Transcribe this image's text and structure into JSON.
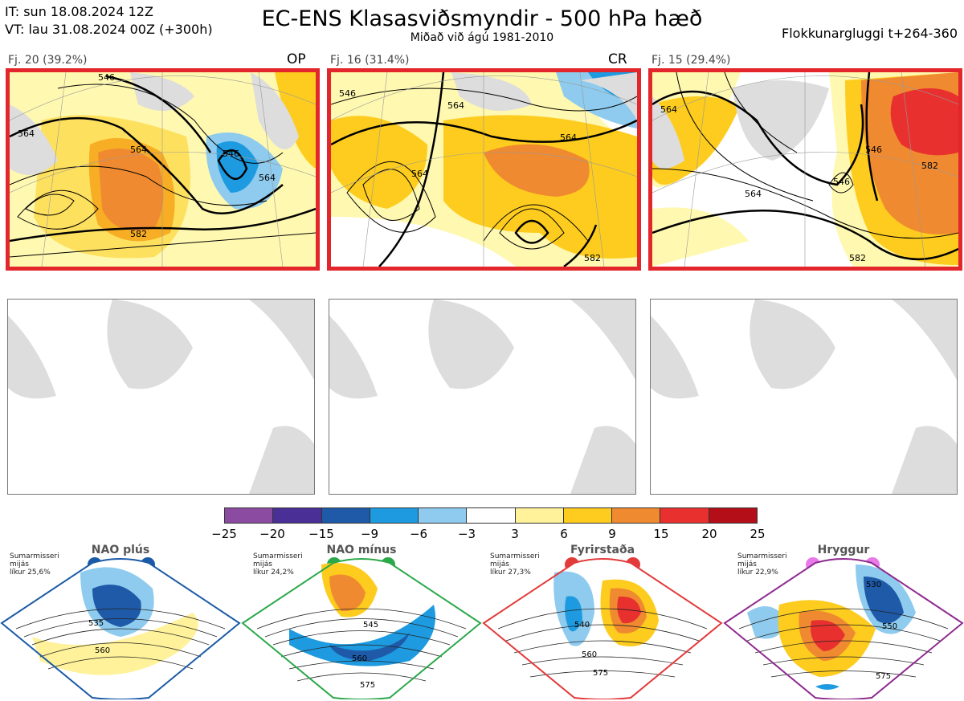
{
  "header": {
    "it_line": "IT: sun 18.08.2024 12Z",
    "vt_line": "VT: lau 31.08.2024 00Z  (+300h)",
    "title": "EC-ENS Klasasviðsmyndir - 500 hPa hæð",
    "subtitle": "Miðað við ágú 1981-2010",
    "window": "Flokkunargluggi t+264-360"
  },
  "clusters": [
    {
      "label": "Fj. 20 (39.2%)",
      "tag": "OP",
      "contours": [
        "546",
        "564",
        "564",
        "546",
        "564",
        "582"
      ]
    },
    {
      "label": "Fj. 16 (31.4%)",
      "tag": "CR",
      "contours": [
        "546",
        "564",
        "564",
        "564",
        "582"
      ]
    },
    {
      "label": "Fj. 15 (29.4%)",
      "tag": "",
      "contours": [
        "564",
        "546",
        "564",
        "546",
        "582",
        "582"
      ]
    }
  ],
  "colorbar": {
    "colors": [
      "#8b4ba0",
      "#4a2f96",
      "#1e5aa8",
      "#1e9be0",
      "#8ecbee",
      "#ffffff",
      "#fff29a",
      "#fdcc1e",
      "#f08a30",
      "#e8312f",
      "#b40f18"
    ],
    "ticks": [
      "−25",
      "−20",
      "−15",
      "−9",
      "−6",
      "−3",
      "3",
      "6",
      "9",
      "15",
      "20",
      "25"
    ]
  },
  "regimes": [
    {
      "name": "NAO plús",
      "line1": "Sumarmisseri",
      "line2": "mijás",
      "line3": "líkur 25,6%",
      "border": "#1a5aa6",
      "dot": "#1a5aa6",
      "c1": "535",
      "c2": "560"
    },
    {
      "name": "NAO mínus",
      "line1": "Sumarmisseri",
      "line2": "mijás",
      "line3": "líkur 24,2%",
      "border": "#2aa84a",
      "dot": "#2aa84a",
      "c1": "545",
      "c2": "560",
      "c3": "575"
    },
    {
      "name": "Fyrirstaða",
      "line1": "Sumarmisseri",
      "line2": "mijás",
      "line3": "líkur 27,3%",
      "border": "#e33a3a",
      "dot": "#e33a3a",
      "c1": "540",
      "c2": "560",
      "c3": "575"
    },
    {
      "name": "Hryggur",
      "line1": "Sumarmisseri",
      "line2": "mijás",
      "line3": "líkur 22,9%",
      "border": "#8e2a8e",
      "dot": "#e879e8",
      "c1": "530",
      "c2": "550",
      "c3": "575"
    }
  ]
}
